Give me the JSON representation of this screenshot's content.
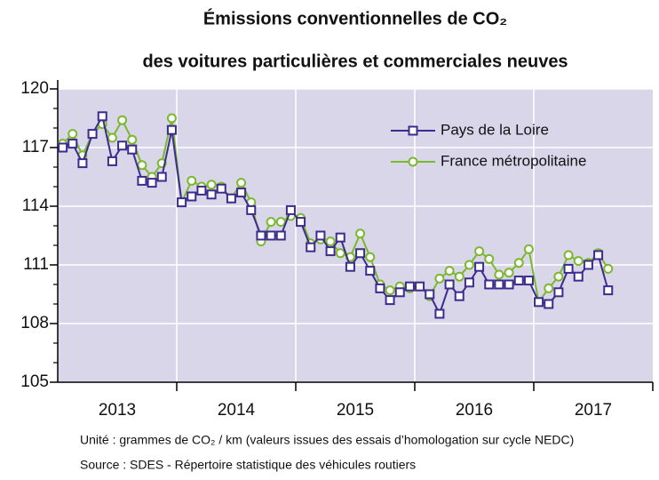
{
  "chart_data": {
    "type": "line",
    "title": [
      "Émissions conventionnelles de CO₂",
      "des voitures particulières et commerciales neuves"
    ],
    "categories": [
      null,
      null,
      null,
      null,
      null,
      null,
      null,
      null,
      null,
      null,
      null,
      null,
      null,
      null,
      null,
      null,
      null,
      null,
      null,
      null,
      null,
      null,
      null,
      null,
      null,
      null,
      null,
      null,
      null,
      null,
      null,
      null,
      null,
      null,
      null,
      null,
      null,
      null,
      null,
      null,
      null,
      null,
      null,
      null,
      null,
      null,
      null,
      null,
      null,
      null,
      null,
      null,
      null,
      null,
      null,
      null
    ],
    "x_groups": [
      "2013",
      "2014",
      "2015",
      "2016",
      "2017"
    ],
    "series": [
      {
        "name": "Pays de la Loire",
        "color": "#3d2c8d",
        "marker": "square",
        "values": [
          117.0,
          117.2,
          116.2,
          117.7,
          118.6,
          116.3,
          117.1,
          116.9,
          115.3,
          115.2,
          115.5,
          117.9,
          114.2,
          114.5,
          114.8,
          114.6,
          114.9,
          114.4,
          114.7,
          113.8,
          112.5,
          112.5,
          112.5,
          113.8,
          113.2,
          111.9,
          112.5,
          111.7,
          112.4,
          110.9,
          111.6,
          110.7,
          109.8,
          109.2,
          109.6,
          109.9,
          109.9,
          109.5,
          108.5,
          110.0,
          109.4,
          110.1,
          110.9,
          110.0,
          110.0,
          110.0,
          110.2,
          110.2,
          109.1,
          109.0,
          109.6,
          110.8,
          110.4,
          111.0,
          111.5,
          109.7
        ]
      },
      {
        "name": "France métropolitaine",
        "color": "#7ab82e",
        "marker": "circle",
        "values": [
          117.2,
          117.7,
          116.6,
          117.7,
          118.2,
          117.5,
          118.4,
          117.4,
          116.1,
          115.5,
          116.2,
          118.5,
          114.2,
          115.3,
          115.0,
          115.1,
          115.0,
          114.4,
          115.2,
          114.2,
          112.2,
          113.2,
          113.2,
          113.5,
          113.4,
          112.1,
          112.3,
          112.2,
          111.6,
          111.4,
          112.6,
          111.4,
          110.0,
          109.7,
          109.9,
          109.8,
          109.9,
          109.4,
          110.3,
          110.7,
          110.4,
          111.0,
          111.7,
          111.3,
          110.5,
          110.6,
          111.1,
          111.8,
          109.1,
          109.8,
          110.4,
          111.5,
          111.2,
          111.1,
          111.6,
          110.8
        ]
      }
    ],
    "ylim": [
      105,
      120
    ],
    "yticks": [
      105,
      108,
      111,
      114,
      117,
      120
    ],
    "yticks_minor": [
      106,
      107,
      109,
      110,
      112,
      113,
      115,
      116,
      118,
      119
    ],
    "grid": true,
    "legend": "upper right",
    "background": "#d9d6ea"
  },
  "notes": [
    "Unité : grammes de CO₂ / km (valeurs issues des essais d’homologation sur cycle NEDC)",
    "Source : SDES - Répertoire statistique des véhicules routiers"
  ]
}
